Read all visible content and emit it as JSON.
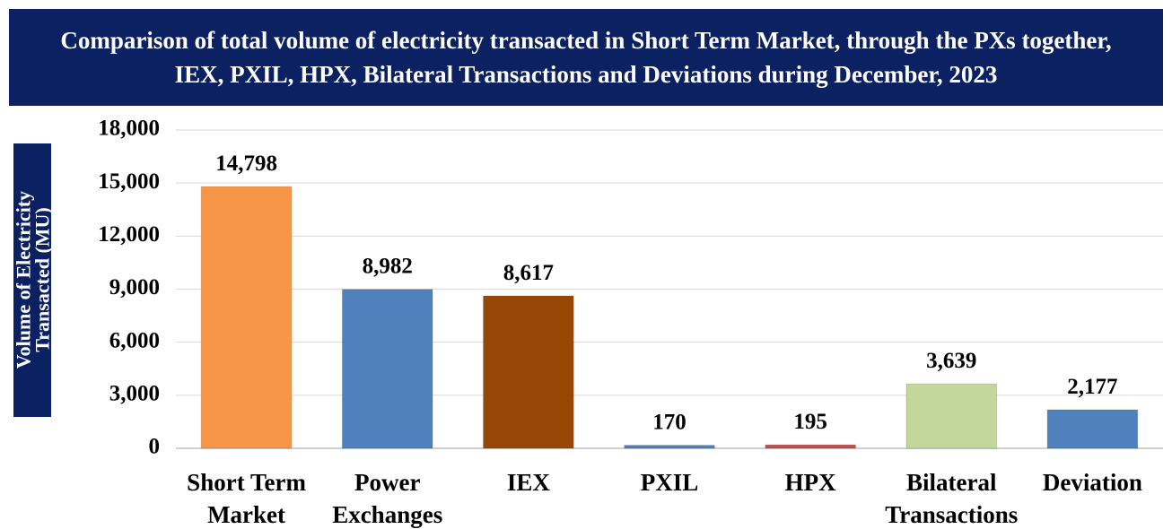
{
  "chart_data": {
    "type": "bar",
    "title": "Comparison of total volume of electricity transacted in Short Term Market, through the PXs together, IEX, PXIL, HPX, Bilateral Transactions and Deviations during December, 2023",
    "y_label": "Volume of Electricity Transacted (MU)",
    "categories": [
      "Short Term Market",
      "Power Exchanges",
      "IEX",
      "PXIL",
      "HPX",
      "Bilateral Transactions",
      "Deviation"
    ],
    "values": [
      14798,
      8982,
      8617,
      170,
      195,
      3639,
      2177
    ],
    "value_labels": [
      "14,798",
      "8,982",
      "8,617",
      "170",
      "195",
      "3,639",
      "2,177"
    ],
    "colors": [
      "#f79646",
      "#4f81bd",
      "#974706",
      "#4f81bd",
      "#c0504d",
      "#c3d69b",
      "#4f81bd"
    ],
    "ylim": [
      0,
      18000
    ],
    "yticks": [
      0,
      {
        "value": 3000,
        "label": "3,000"
      },
      {
        "value": 6000,
        "label": "6,000"
      },
      {
        "value": 9000,
        "label": "9,000"
      },
      {
        "value": 12000,
        "label": "12,000"
      },
      {
        "value": 15000,
        "label": "15,000"
      },
      {
        "value": 18000,
        "label": "18,000"
      }
    ],
    "grid": true
  }
}
